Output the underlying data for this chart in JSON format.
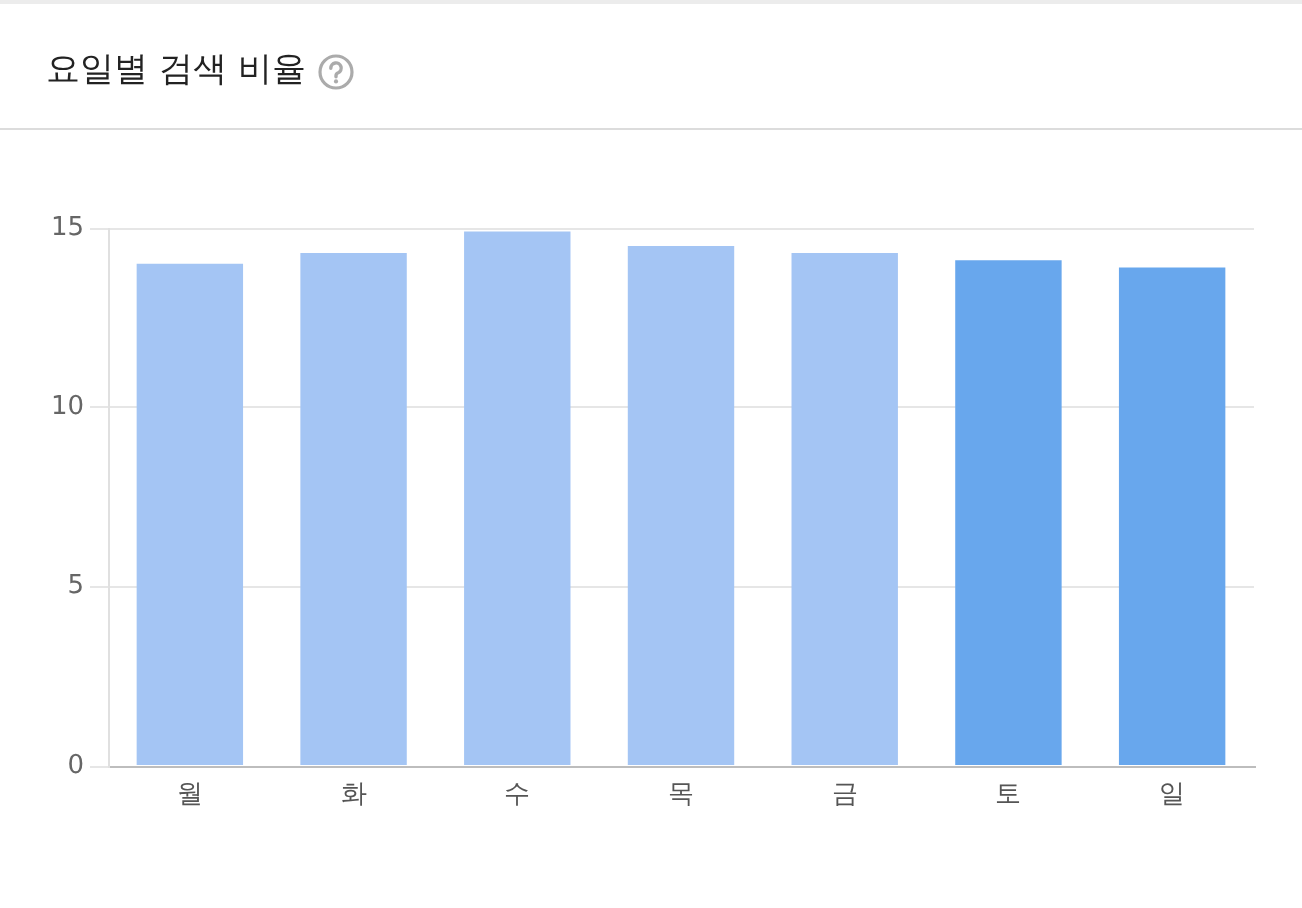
{
  "chart_data": {
    "type": "bar",
    "title": "요일별 검색 비율",
    "categories": [
      "월",
      "화",
      "수",
      "목",
      "금",
      "토",
      "일"
    ],
    "values": [
      14.0,
      14.3,
      14.9,
      14.5,
      14.3,
      14.1,
      13.9
    ],
    "colors": [
      "#a4c5f4",
      "#a4c5f4",
      "#a4c5f4",
      "#a4c5f4",
      "#a4c5f4",
      "#68a7ed",
      "#68a7ed"
    ],
    "ylim": [
      0,
      15
    ],
    "yticks": [
      0,
      5,
      10,
      15
    ],
    "grid": "y"
  }
}
